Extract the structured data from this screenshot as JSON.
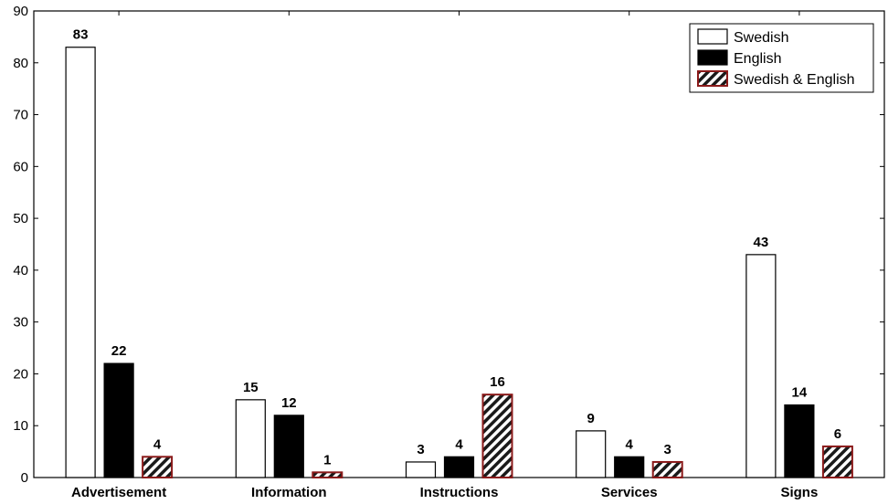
{
  "chart_data": {
    "type": "bar",
    "title": "",
    "xlabel": "",
    "ylabel": "",
    "categories": [
      "Advertisement",
      "Information",
      "Instructions",
      "Services",
      "Signs"
    ],
    "series": [
      {
        "name": "Swedish",
        "values": [
          83,
          15,
          3,
          9,
          43
        ],
        "fill": "#ffffff",
        "stroke": "#000000",
        "pattern": "none"
      },
      {
        "name": "English",
        "values": [
          22,
          12,
          4,
          4,
          14
        ],
        "fill": "#000000",
        "stroke": "#000000",
        "pattern": "none"
      },
      {
        "name": "Swedish & English",
        "values": [
          4,
          1,
          16,
          3,
          6
        ],
        "fill": "#ffffff",
        "stroke": "#8b1a1a",
        "pattern": "diagonal-hatch"
      }
    ],
    "ylim": [
      0,
      90
    ],
    "yticks": [
      0,
      10,
      20,
      30,
      40,
      50,
      60,
      70,
      80,
      90
    ],
    "data_labels": true,
    "grid": false,
    "legend": {
      "position": "top-right"
    }
  }
}
